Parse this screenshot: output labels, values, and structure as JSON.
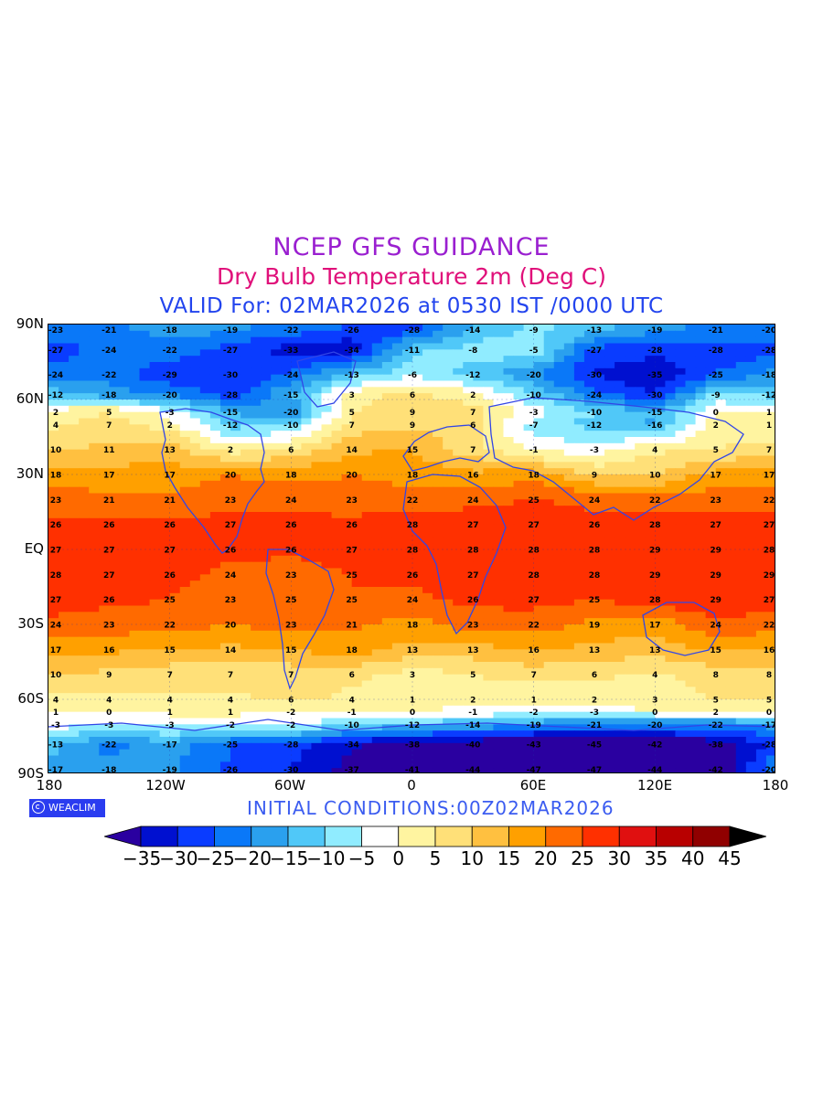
{
  "header": {
    "title": "NCEP GFS GUIDANCE",
    "subtitle": "Dry Bulb Temperature 2m (Deg C)",
    "valid": "VALID For: 02MAR2026 at 0530 IST /0000 UTC"
  },
  "axes": {
    "y_labels": [
      "90N",
      "60N",
      "30N",
      "EQ",
      "30S",
      "60S",
      "90S"
    ],
    "x_labels": [
      "180",
      "120W",
      "60W",
      "0",
      "60E",
      "120E",
      "180"
    ]
  },
  "footer": {
    "brand": "WEACLIM",
    "initial_conditions": "INITIAL CONDITIONS:00Z02MAR2026"
  },
  "colorbar": {
    "labels": [
      "-35",
      "-30",
      "-25",
      "-20",
      "-15",
      "-10",
      "-5",
      "0",
      "5",
      "10",
      "15",
      "20",
      "25",
      "30",
      "35",
      "40",
      "45"
    ],
    "colors": [
      "#2a00a0",
      "#0010d0",
      "#0a3cff",
      "#0a78f8",
      "#2aa0ee",
      "#50c8f8",
      "#90ecff",
      "#ffffff",
      "#fff4a0",
      "#ffe078",
      "#ffc040",
      "#ffa000",
      "#ff6a00",
      "#ff3000",
      "#e01010",
      "#b80000",
      "#900000",
      "#000000"
    ]
  },
  "chart_data": {
    "type": "heatmap",
    "title": "NCEP GFS GUIDANCE",
    "variable": "Dry Bulb Temperature 2m (Deg C)",
    "valid": "VALID For: 02MAR2026 at 0530 IST /0000 UTC",
    "initial_conditions": "INITIAL CONDITIONS:00Z02MAR2026",
    "lon_range": [
      -180,
      180
    ],
    "lat_range": [
      -90,
      90
    ],
    "levels": [
      -35,
      -30,
      -25,
      -20,
      -15,
      -10,
      -5,
      0,
      5,
      10,
      15,
      20,
      25,
      30,
      35,
      40,
      45
    ],
    "sample_lon_step_deg": 30,
    "sample_lons": [
      -180,
      -150,
      -120,
      -90,
      -60,
      -30,
      0,
      30,
      60,
      90,
      120,
      150,
      180
    ],
    "rows": [
      {
        "lat": 88,
        "values": [
          -23,
          -21,
          -18,
          -19,
          -22,
          -26,
          -28,
          -14,
          -9,
          -13,
          -19,
          -21,
          -20
        ]
      },
      {
        "lat": 80,
        "values": [
          -27,
          -24,
          -22,
          -27,
          -33,
          -34,
          -11,
          -8,
          -5,
          -27,
          -28,
          -28,
          -28
        ]
      },
      {
        "lat": 70,
        "values": [
          -24,
          -22,
          -29,
          -30,
          -24,
          -13,
          -6,
          -12,
          -20,
          -30,
          -35,
          -25,
          -18
        ]
      },
      {
        "lat": 62,
        "values": [
          -12,
          -18,
          -20,
          -28,
          -15,
          3,
          6,
          2,
          -10,
          -24,
          -30,
          -9,
          -12
        ]
      },
      {
        "lat": 55,
        "values": [
          2,
          5,
          -3,
          -15,
          -20,
          5,
          9,
          7,
          -3,
          -10,
          -15,
          0,
          1
        ]
      },
      {
        "lat": 50,
        "values": [
          4,
          7,
          2,
          -12,
          -10,
          7,
          9,
          6,
          -7,
          -12,
          -16,
          2,
          1
        ]
      },
      {
        "lat": 40,
        "values": [
          10,
          11,
          13,
          2,
          6,
          14,
          15,
          7,
          -1,
          -3,
          4,
          5,
          7
        ]
      },
      {
        "lat": 30,
        "values": [
          18,
          17,
          17,
          20,
          18,
          20,
          18,
          16,
          18,
          9,
          10,
          17,
          17
        ]
      },
      {
        "lat": 20,
        "values": [
          23,
          21,
          21,
          23,
          24,
          23,
          22,
          24,
          25,
          24,
          22,
          23,
          22
        ]
      },
      {
        "lat": 10,
        "values": [
          26,
          26,
          26,
          27,
          26,
          26,
          28,
          27,
          27,
          26,
          28,
          27,
          27
        ]
      },
      {
        "lat": 0,
        "values": [
          27,
          27,
          27,
          26,
          26,
          27,
          28,
          28,
          28,
          28,
          29,
          29,
          28
        ]
      },
      {
        "lat": -10,
        "values": [
          28,
          27,
          26,
          24,
          23,
          25,
          26,
          27,
          28,
          28,
          29,
          29,
          29
        ]
      },
      {
        "lat": -20,
        "values": [
          27,
          26,
          25,
          23,
          25,
          25,
          24,
          26,
          27,
          25,
          28,
          29,
          27
        ]
      },
      {
        "lat": -30,
        "values": [
          24,
          23,
          22,
          20,
          23,
          21,
          18,
          23,
          22,
          19,
          17,
          24,
          22
        ]
      },
      {
        "lat": -40,
        "values": [
          17,
          16,
          15,
          14,
          15,
          18,
          13,
          13,
          16,
          13,
          13,
          15,
          16
        ]
      },
      {
        "lat": -50,
        "values": [
          10,
          9,
          7,
          7,
          7,
          6,
          3,
          5,
          7,
          6,
          4,
          8,
          8
        ]
      },
      {
        "lat": -60,
        "values": [
          4,
          4,
          4,
          4,
          6,
          4,
          1,
          2,
          1,
          2,
          3,
          5,
          5
        ]
      },
      {
        "lat": -65,
        "values": [
          1,
          0,
          1,
          1,
          -2,
          -1,
          0,
          -1,
          -2,
          -3,
          0,
          2,
          0
        ]
      },
      {
        "lat": -70,
        "values": [
          -3,
          -3,
          -3,
          -2,
          -2,
          -10,
          -12,
          -14,
          -19,
          -21,
          -20,
          -22,
          -17
        ]
      },
      {
        "lat": -78,
        "values": [
          -13,
          -22,
          -17,
          -25,
          -28,
          -34,
          -38,
          -40,
          -43,
          -45,
          -42,
          -38,
          -28
        ]
      },
      {
        "lat": -88,
        "values": [
          -17,
          -18,
          -19,
          -26,
          -30,
          -37,
          -41,
          -44,
          -47,
          -47,
          -44,
          -42,
          -20
        ]
      }
    ]
  }
}
